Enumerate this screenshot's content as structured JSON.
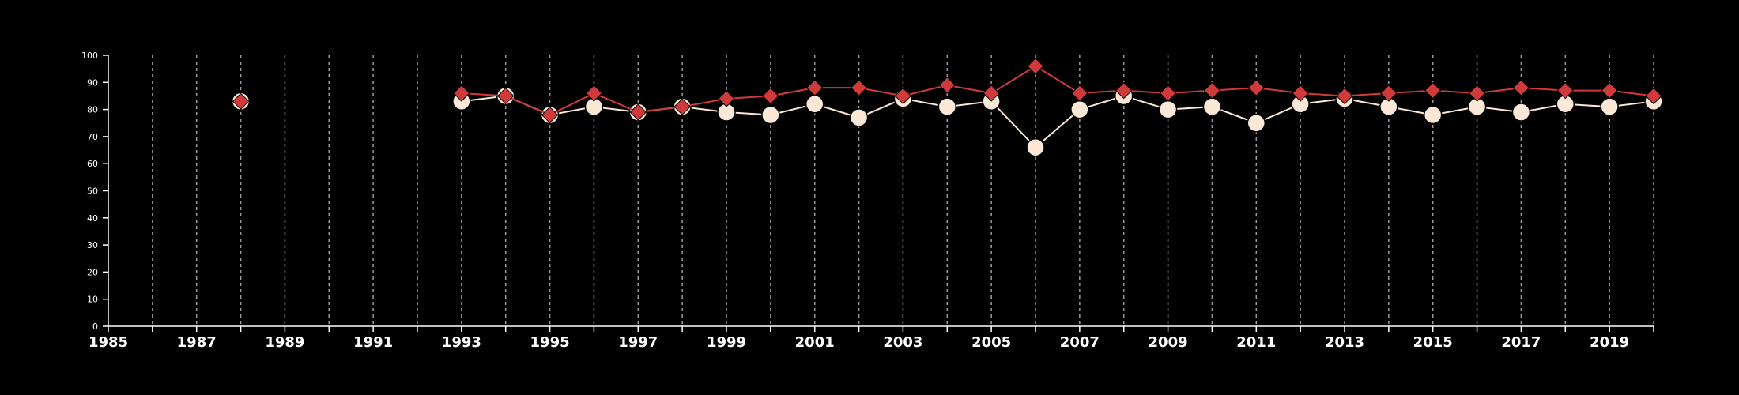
{
  "chart_data": {
    "type": "line",
    "title": "",
    "xlabel": "",
    "ylabel": "",
    "xlim": [
      1985,
      2020
    ],
    "ylim": [
      0,
      100
    ],
    "x_ticks": [
      1985,
      1987,
      1989,
      1991,
      1993,
      1995,
      1997,
      1999,
      2001,
      2003,
      2005,
      2007,
      2009,
      2011,
      2013,
      2015,
      2017,
      2019
    ],
    "y_ticks": [
      0,
      10,
      20,
      30,
      40,
      50,
      60,
      70,
      80,
      90,
      100
    ],
    "grid": "vertical dashed lines at every year",
    "legend": "none",
    "series": [
      {
        "marker": "circle",
        "color": "#fbe8d6",
        "points": [
          {
            "x": 1988,
            "y": 83
          },
          {
            "x": 1993,
            "y": 83
          },
          {
            "x": 1994,
            "y": 85
          },
          {
            "x": 1995,
            "y": 78
          },
          {
            "x": 1996,
            "y": 81
          },
          {
            "x": 1997,
            "y": 79
          },
          {
            "x": 1998,
            "y": 81
          },
          {
            "x": 1999,
            "y": 79
          },
          {
            "x": 2000,
            "y": 78
          },
          {
            "x": 2001,
            "y": 82
          },
          {
            "x": 2002,
            "y": 77
          },
          {
            "x": 2003,
            "y": 84
          },
          {
            "x": 2004,
            "y": 81
          },
          {
            "x": 2005,
            "y": 83
          },
          {
            "x": 2006,
            "y": 66
          },
          {
            "x": 2007,
            "y": 80
          },
          {
            "x": 2008,
            "y": 85
          },
          {
            "x": 2009,
            "y": 80
          },
          {
            "x": 2010,
            "y": 81
          },
          {
            "x": 2011,
            "y": 75
          },
          {
            "x": 2012,
            "y": 82
          },
          {
            "x": 2013,
            "y": 84
          },
          {
            "x": 2014,
            "y": 81
          },
          {
            "x": 2015,
            "y": 78
          },
          {
            "x": 2016,
            "y": 81
          },
          {
            "x": 2017,
            "y": 79
          },
          {
            "x": 2018,
            "y": 82
          },
          {
            "x": 2019,
            "y": 81
          },
          {
            "x": 2020,
            "y": 83
          }
        ]
      },
      {
        "marker": "diamond",
        "color": "#d13a3a",
        "points": [
          {
            "x": 1988,
            "y": 83
          },
          {
            "x": 1993,
            "y": 86
          },
          {
            "x": 1994,
            "y": 85
          },
          {
            "x": 1995,
            "y": 78
          },
          {
            "x": 1996,
            "y": 86
          },
          {
            "x": 1997,
            "y": 79
          },
          {
            "x": 1998,
            "y": 81
          },
          {
            "x": 1999,
            "y": 84
          },
          {
            "x": 2000,
            "y": 85
          },
          {
            "x": 2001,
            "y": 88
          },
          {
            "x": 2002,
            "y": 88
          },
          {
            "x": 2003,
            "y": 85
          },
          {
            "x": 2004,
            "y": 89
          },
          {
            "x": 2005,
            "y": 86
          },
          {
            "x": 2006,
            "y": 96
          },
          {
            "x": 2007,
            "y": 86
          },
          {
            "x": 2008,
            "y": 87
          },
          {
            "x": 2009,
            "y": 86
          },
          {
            "x": 2010,
            "y": 87
          },
          {
            "x": 2011,
            "y": 88
          },
          {
            "x": 2012,
            "y": 86
          },
          {
            "x": 2013,
            "y": 85
          },
          {
            "x": 2014,
            "y": 86
          },
          {
            "x": 2015,
            "y": 87
          },
          {
            "x": 2016,
            "y": 86
          },
          {
            "x": 2017,
            "y": 88
          },
          {
            "x": 2018,
            "y": 87
          },
          {
            "x": 2019,
            "y": 87
          },
          {
            "x": 2020,
            "y": 85
          }
        ]
      }
    ]
  }
}
